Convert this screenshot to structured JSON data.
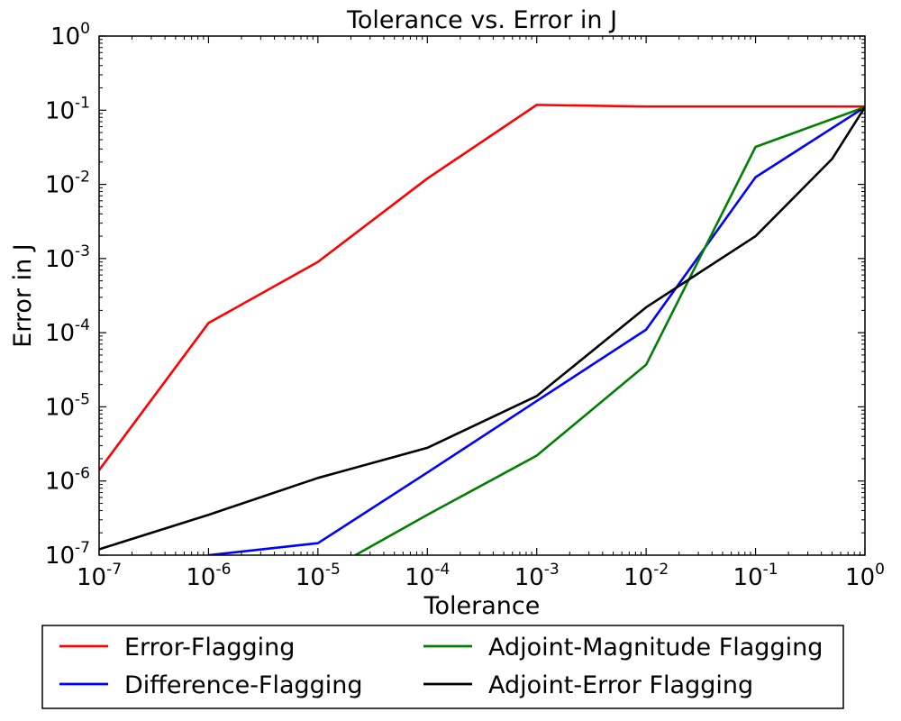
{
  "chart_data": {
    "type": "line",
    "title": "Tolerance vs. Error in J",
    "xlabel": "Tolerance",
    "ylabel": "Error in J",
    "xscale": "log",
    "yscale": "log",
    "xlim": [
      1e-07,
      1
    ],
    "ylim": [
      1e-07,
      1
    ],
    "x_ticks": [
      {
        "base": "10",
        "exp": "-7",
        "value": 1e-07
      },
      {
        "base": "10",
        "exp": "-6",
        "value": 1e-06
      },
      {
        "base": "10",
        "exp": "-5",
        "value": 1e-05
      },
      {
        "base": "10",
        "exp": "-4",
        "value": 0.0001
      },
      {
        "base": "10",
        "exp": "-3",
        "value": 0.001
      },
      {
        "base": "10",
        "exp": "-2",
        "value": 0.01
      },
      {
        "base": "10",
        "exp": "-1",
        "value": 0.1
      },
      {
        "base": "10",
        "exp": "0",
        "value": 1
      }
    ],
    "y_ticks": [
      {
        "base": "10",
        "exp": "-7",
        "value": 1e-07
      },
      {
        "base": "10",
        "exp": "-6",
        "value": 1e-06
      },
      {
        "base": "10",
        "exp": "-5",
        "value": 1e-05
      },
      {
        "base": "10",
        "exp": "-4",
        "value": 0.0001
      },
      {
        "base": "10",
        "exp": "-3",
        "value": 0.001
      },
      {
        "base": "10",
        "exp": "-2",
        "value": 0.01
      },
      {
        "base": "10",
        "exp": "-1",
        "value": 0.1
      },
      {
        "base": "10",
        "exp": "0",
        "value": 1
      }
    ],
    "grid": false,
    "legend_position": "below",
    "series": [
      {
        "name": "Error-Flagging",
        "color": "#ff0000",
        "x": [
          1e-07,
          1e-06,
          1e-05,
          0.0001,
          0.001,
          0.01,
          0.1,
          1
        ],
        "y": [
          1.4e-06,
          0.000135,
          0.0009,
          0.012,
          0.118,
          0.112,
          0.112,
          0.112
        ]
      },
      {
        "name": "Difference-Flagging",
        "color": "#0000ff",
        "x": [
          1e-06,
          1e-05,
          0.0001,
          0.001,
          0.01,
          0.1,
          1
        ],
        "y": [
          1e-07,
          1.45e-07,
          1.3e-06,
          1.2e-05,
          0.00011,
          0.0125,
          0.11
        ]
      },
      {
        "name": "Adjoint-Magnitude Flagging",
        "color": "#008000",
        "x": [
          2.2e-05,
          0.0001,
          0.001,
          0.01,
          0.1,
          1
        ],
        "y": [
          1e-07,
          3.5e-07,
          2.2e-06,
          3.7e-05,
          0.032,
          0.11
        ]
      },
      {
        "name": "Adjoint-Error Flagging",
        "color": "#000000",
        "x": [
          1e-07,
          1e-06,
          1e-05,
          0.0001,
          0.001,
          0.01,
          0.1,
          0.5,
          1
        ],
        "y": [
          1.2e-07,
          3.5e-07,
          1.1e-06,
          2.8e-06,
          1.4e-05,
          0.00022,
          0.002,
          0.022,
          0.11
        ]
      }
    ]
  }
}
